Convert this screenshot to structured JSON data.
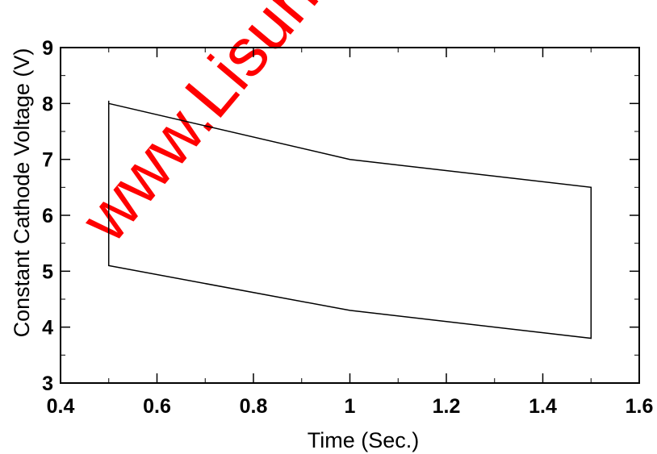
{
  "chart_data": {
    "type": "line",
    "xlabel": "Time (Sec.)",
    "ylabel": "Constant Cathode Voltage (V)",
    "xlim": [
      0.4,
      1.6
    ],
    "ylim": [
      3,
      9
    ],
    "x_ticks": [
      "0.4",
      "0.6",
      "0.8",
      "1",
      "1.2",
      "1.4",
      "1.6"
    ],
    "y_ticks": [
      "3",
      "4",
      "5",
      "6",
      "7",
      "8",
      "9"
    ],
    "grid": false,
    "series": [
      {
        "points": [
          [
            0.5,
            8.0
          ],
          [
            1.0,
            7.0
          ],
          [
            1.5,
            6.5
          ],
          [
            1.5,
            3.8
          ],
          [
            1.0,
            4.3
          ],
          [
            0.5,
            5.1
          ],
          [
            0.5,
            8.05
          ]
        ]
      }
    ],
    "watermark": "www.Lisun"
  }
}
